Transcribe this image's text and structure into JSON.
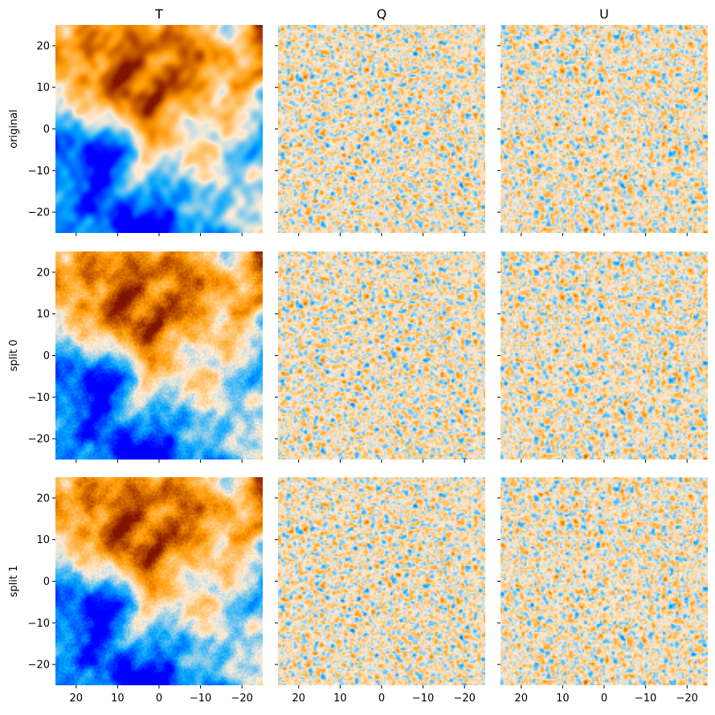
{
  "chart_data": {
    "type": "heatmap",
    "layout": "3x3 grid of map panels, shared axes",
    "columns": [
      "T",
      "Q",
      "U"
    ],
    "rows": [
      "original",
      "split 0",
      "split 1"
    ],
    "x_axis": {
      "lim": [
        25,
        -25
      ],
      "ticks": [
        20,
        10,
        0,
        -10,
        -20
      ],
      "tick_labels": [
        "20",
        "10",
        "0",
        "−10",
        "−20"
      ],
      "inverted": true
    },
    "y_axis": {
      "lim": [
        -25,
        25
      ],
      "ticks": [
        20,
        10,
        0,
        -10,
        -20
      ],
      "tick_labels": [
        "20",
        "10",
        "0",
        "−10",
        "−20"
      ]
    },
    "colormap": "planck",
    "colormap_stops": [
      "#0000ff",
      "#00a5ff",
      "#ffedd9",
      "#ff9900",
      "#7f1400"
    ],
    "grid": false,
    "legend": "none"
  }
}
